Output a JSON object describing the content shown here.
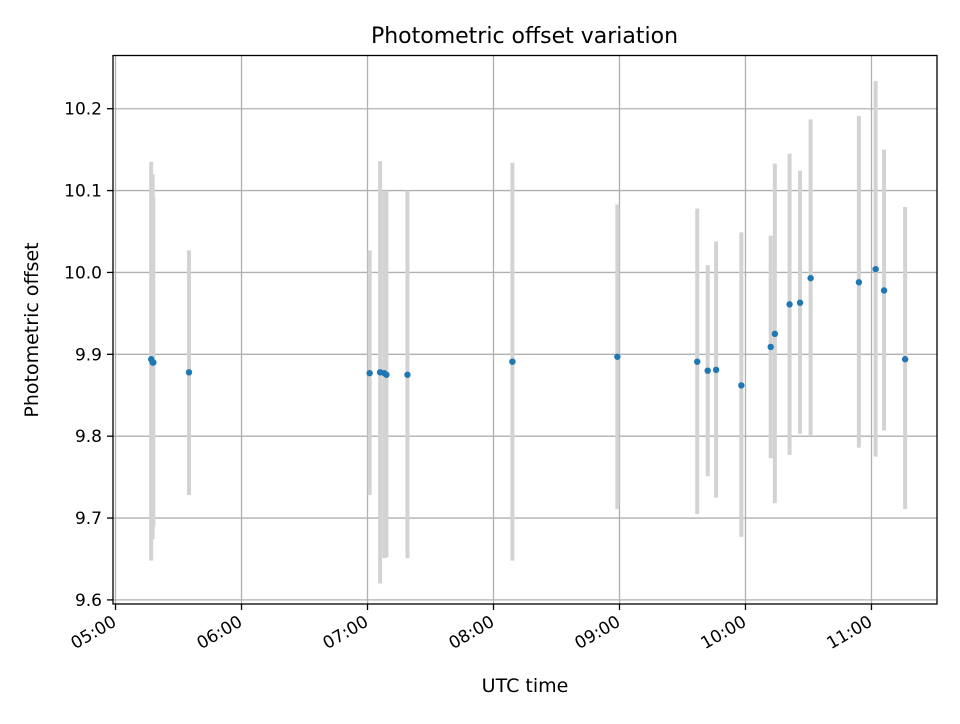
{
  "chart_data": {
    "type": "scatter",
    "title": "Photometric offset variation",
    "xlabel": "UTC time",
    "ylabel": "Photometric offset",
    "x_unit": "hours UTC",
    "xlim": [
      4.98,
      11.52
    ],
    "ylim": [
      9.595,
      10.265
    ],
    "x_ticks": [
      {
        "value": 5,
        "label": "05:00"
      },
      {
        "value": 6,
        "label": "06:00"
      },
      {
        "value": 7,
        "label": "07:00"
      },
      {
        "value": 8,
        "label": "08:00"
      },
      {
        "value": 9,
        "label": "09:00"
      },
      {
        "value": 10,
        "label": "10:00"
      },
      {
        "value": 11,
        "label": "11:00"
      }
    ],
    "y_ticks": [
      {
        "value": 9.6,
        "label": "9.6"
      },
      {
        "value": 9.7,
        "label": "9.7"
      },
      {
        "value": 9.8,
        "label": "9.8"
      },
      {
        "value": 9.9,
        "label": "9.9"
      },
      {
        "value": 10.0,
        "label": "10.0"
      },
      {
        "value": 10.1,
        "label": "10.1"
      },
      {
        "value": 10.2,
        "label": "10.2"
      }
    ],
    "grid": true,
    "point_color": "#1f77b4",
    "errorbar_color": "#d3d3d3",
    "points": [
      {
        "x": 5.283,
        "y": 9.894,
        "err_low": 9.648,
        "err_high": 10.135
      },
      {
        "x": 5.295,
        "y": 9.89,
        "err_low": 9.674,
        "err_high": 10.12
      },
      {
        "x": 5.3,
        "y": 9.89,
        "err_low": 9.69,
        "err_high": 10.092
      },
      {
        "x": 5.583,
        "y": 9.878,
        "err_low": 9.728,
        "err_high": 10.027
      },
      {
        "x": 7.017,
        "y": 9.877,
        "err_low": 9.728,
        "err_high": 10.027
      },
      {
        "x": 7.1,
        "y": 9.878,
        "err_low": 9.62,
        "err_high": 10.136
      },
      {
        "x": 7.133,
        "y": 9.877,
        "err_low": 9.651,
        "err_high": 10.1
      },
      {
        "x": 7.15,
        "y": 9.875,
        "err_low": 9.652,
        "err_high": 10.1
      },
      {
        "x": 7.317,
        "y": 9.875,
        "err_low": 9.651,
        "err_high": 10.1
      },
      {
        "x": 8.15,
        "y": 9.891,
        "err_low": 9.648,
        "err_high": 10.134
      },
      {
        "x": 8.983,
        "y": 9.897,
        "err_low": 9.711,
        "err_high": 10.083
      },
      {
        "x": 9.617,
        "y": 9.891,
        "err_low": 9.705,
        "err_high": 10.078
      },
      {
        "x": 9.7,
        "y": 9.88,
        "err_low": 9.751,
        "err_high": 10.009
      },
      {
        "x": 9.767,
        "y": 9.881,
        "err_low": 9.725,
        "err_high": 10.038
      },
      {
        "x": 9.967,
        "y": 9.862,
        "err_low": 9.677,
        "err_high": 10.049
      },
      {
        "x": 10.2,
        "y": 9.909,
        "err_low": 9.773,
        "err_high": 10.045
      },
      {
        "x": 10.233,
        "y": 9.925,
        "err_low": 9.718,
        "err_high": 10.133
      },
      {
        "x": 10.35,
        "y": 9.961,
        "err_low": 9.777,
        "err_high": 10.145
      },
      {
        "x": 10.433,
        "y": 9.963,
        "err_low": 9.803,
        "err_high": 10.124
      },
      {
        "x": 10.517,
        "y": 9.993,
        "err_low": 9.8,
        "err_high": 10.187
      },
      {
        "x": 10.9,
        "y": 9.988,
        "err_low": 9.786,
        "err_high": 10.191
      },
      {
        "x": 11.033,
        "y": 10.004,
        "err_low": 9.775,
        "err_high": 10.234
      },
      {
        "x": 11.1,
        "y": 9.978,
        "err_low": 9.807,
        "err_high": 10.15
      },
      {
        "x": 11.267,
        "y": 9.894,
        "err_low": 9.711,
        "err_high": 10.08
      }
    ]
  }
}
